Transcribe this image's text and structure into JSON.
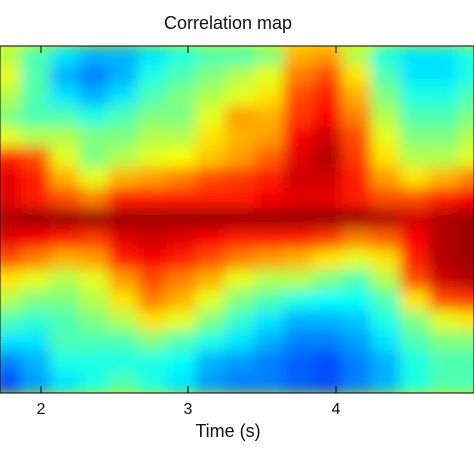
{
  "chart_data": {
    "type": "heatmap",
    "title": "Correlation map",
    "xlabel": "Time (s)",
    "ylabel": "",
    "colormap": "jet",
    "xlim": [
      1.7,
      4.95
    ],
    "x_ticks": [
      2,
      3,
      4
    ],
    "x_tick_labels": [
      "2",
      "3",
      "4"
    ],
    "grid": false,
    "legend": "none",
    "x_centers": [
      1.75,
      1.95,
      2.15,
      2.35,
      2.55,
      2.75,
      2.95,
      3.15,
      3.35,
      3.55,
      3.75,
      3.95,
      4.15,
      4.35,
      4.55,
      4.75,
      4.95
    ],
    "rows": 17,
    "z": [
      [
        0.55,
        0.45,
        0.35,
        0.3,
        0.3,
        0.35,
        0.4,
        0.45,
        0.45,
        0.5,
        0.7,
        0.72,
        0.55,
        0.4,
        0.35,
        0.35,
        0.4
      ],
      [
        0.6,
        0.45,
        0.3,
        0.25,
        0.3,
        0.4,
        0.45,
        0.5,
        0.55,
        0.6,
        0.75,
        0.8,
        0.65,
        0.45,
        0.35,
        0.35,
        0.4
      ],
      [
        0.55,
        0.45,
        0.35,
        0.3,
        0.35,
        0.45,
        0.5,
        0.55,
        0.6,
        0.65,
        0.8,
        0.85,
        0.7,
        0.5,
        0.4,
        0.4,
        0.45
      ],
      [
        0.5,
        0.45,
        0.45,
        0.4,
        0.45,
        0.5,
        0.5,
        0.6,
        0.72,
        0.7,
        0.82,
        0.88,
        0.75,
        0.55,
        0.45,
        0.45,
        0.5
      ],
      [
        0.6,
        0.55,
        0.55,
        0.5,
        0.5,
        0.55,
        0.55,
        0.65,
        0.7,
        0.72,
        0.88,
        0.92,
        0.8,
        0.6,
        0.5,
        0.5,
        0.55
      ],
      [
        0.85,
        0.8,
        0.6,
        0.5,
        0.55,
        0.6,
        0.62,
        0.68,
        0.72,
        0.78,
        0.9,
        0.95,
        0.82,
        0.65,
        0.55,
        0.55,
        0.6
      ],
      [
        0.9,
        0.85,
        0.7,
        0.6,
        0.7,
        0.72,
        0.75,
        0.8,
        0.82,
        0.85,
        0.92,
        0.92,
        0.85,
        0.72,
        0.65,
        0.7,
        0.75
      ],
      [
        0.9,
        0.85,
        0.8,
        0.75,
        0.85,
        0.85,
        0.85,
        0.85,
        0.85,
        0.88,
        0.9,
        0.9,
        0.85,
        0.8,
        0.8,
        0.85,
        0.88
      ],
      [
        0.95,
        0.97,
        0.97,
        0.97,
        0.97,
        0.97,
        0.97,
        0.97,
        0.97,
        0.97,
        0.97,
        0.97,
        0.97,
        0.95,
        0.92,
        0.95,
        0.97
      ],
      [
        0.9,
        0.88,
        0.85,
        0.82,
        0.9,
        0.92,
        0.9,
        0.88,
        0.85,
        0.85,
        0.85,
        0.82,
        0.75,
        0.78,
        0.88,
        0.95,
        0.97
      ],
      [
        0.8,
        0.75,
        0.7,
        0.72,
        0.85,
        0.88,
        0.85,
        0.8,
        0.75,
        0.72,
        0.7,
        0.65,
        0.6,
        0.65,
        0.85,
        0.95,
        0.97
      ],
      [
        0.65,
        0.6,
        0.55,
        0.6,
        0.72,
        0.8,
        0.75,
        0.7,
        0.6,
        0.55,
        0.55,
        0.5,
        0.45,
        0.55,
        0.8,
        0.92,
        0.95
      ],
      [
        0.55,
        0.5,
        0.5,
        0.55,
        0.65,
        0.75,
        0.7,
        0.6,
        0.5,
        0.45,
        0.4,
        0.38,
        0.38,
        0.45,
        0.65,
        0.8,
        0.82
      ],
      [
        0.45,
        0.42,
        0.45,
        0.5,
        0.55,
        0.65,
        0.6,
        0.5,
        0.42,
        0.35,
        0.3,
        0.3,
        0.32,
        0.4,
        0.5,
        0.6,
        0.65
      ],
      [
        0.35,
        0.35,
        0.45,
        0.45,
        0.45,
        0.5,
        0.45,
        0.4,
        0.35,
        0.3,
        0.25,
        0.25,
        0.28,
        0.35,
        0.45,
        0.5,
        0.5
      ],
      [
        0.25,
        0.3,
        0.4,
        0.4,
        0.4,
        0.4,
        0.38,
        0.3,
        0.28,
        0.25,
        0.22,
        0.2,
        0.25,
        0.3,
        0.4,
        0.45,
        0.45
      ],
      [
        0.2,
        0.28,
        0.35,
        0.4,
        0.45,
        0.4,
        0.35,
        0.28,
        0.25,
        0.25,
        0.22,
        0.2,
        0.25,
        0.3,
        0.4,
        0.45,
        0.45
      ]
    ]
  }
}
